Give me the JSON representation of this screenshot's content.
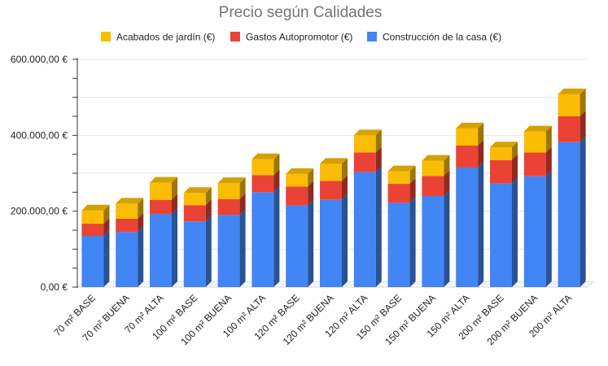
{
  "chart_data": {
    "type": "bar",
    "stacked": true,
    "three_d": true,
    "title": "Precio según Calidades",
    "categories": [
      "70 m² BASE",
      "70 m² BUENA",
      "70 m² ALTA",
      "100 m² BASE",
      "100 m² BUENA",
      "100 m² ALTA",
      "120 m² BASE",
      "120 m² BUENA",
      "120 m² ALTA",
      "150 m² BASE",
      "150 m² BUENA",
      "150 m² ALTA",
      "200 m² BASE",
      "200 m² BUENA",
      "200 m² ALTA"
    ],
    "series": [
      {
        "name": "Construcción de la casa (€)",
        "color": "#4285f4",
        "values": [
          135000,
          145000,
          193000,
          173000,
          190000,
          250000,
          215000,
          230000,
          303000,
          222000,
          240000,
          315000,
          273000,
          292000,
          382000
        ]
      },
      {
        "name": "Gastos Autopromotor (€)",
        "color": "#ea4335",
        "values": [
          32000,
          35000,
          37000,
          43000,
          42000,
          45000,
          50000,
          50000,
          52000,
          50000,
          53000,
          58000,
          62000,
          63000,
          68000
        ]
      },
      {
        "name": "Acabados de jardín (€)",
        "color": "#fbbc04",
        "values": [
          35000,
          40000,
          45000,
          32000,
          42000,
          42000,
          33000,
          45000,
          45000,
          33000,
          40000,
          45000,
          33000,
          55000,
          58000
        ]
      }
    ],
    "legend_order": [
      "Acabados de jardín (€)",
      "Gastos Autopromotor (€)",
      "Construcción de la casa (€)"
    ],
    "legend_position": "top",
    "ylim": [
      0,
      600000
    ],
    "yticks": [
      "0,00 €",
      "200.000,00 €",
      "400.000,00 €",
      "600.000,00 €"
    ],
    "ytick_values": [
      0,
      200000,
      400000,
      600000
    ],
    "grid": true
  }
}
